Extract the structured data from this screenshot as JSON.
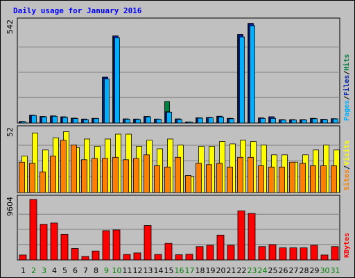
{
  "chart_data": {
    "type": "bar",
    "title": "Daily usage for January 2016",
    "days": [
      "1",
      "2",
      "3",
      "4",
      "5",
      "6",
      "7",
      "8",
      "9",
      "10",
      "11",
      "12",
      "13",
      "14",
      "15",
      "16",
      "17",
      "18",
      "19",
      "20",
      "21",
      "22",
      "23",
      "24",
      "25",
      "26",
      "27",
      "28",
      "29",
      "30",
      "31"
    ],
    "weekend_days": [
      2,
      3,
      9,
      10,
      16,
      17,
      23,
      24,
      30,
      31
    ],
    "panels": [
      {
        "key": "pages_files_hits",
        "max_label": "542",
        "scale_max": 542,
        "side_labels": [
          "Pages",
          "/",
          "Files",
          "/",
          "Hits"
        ],
        "series": [
          {
            "name": "Hits",
            "color": "#008040",
            "values": [
              8,
              42,
              35,
              38,
              33,
              26,
              21,
              25,
              245,
              465,
              22,
              21,
              35,
              21,
              115,
              22,
              6,
              28,
              30,
              36,
              25,
              473,
              532,
              27,
              33,
              18,
              18,
              18,
              25,
              20,
              23
            ]
          },
          {
            "name": "Files",
            "color": "#0022aa",
            "values": [
              8,
              42,
              35,
              38,
              33,
              26,
              21,
              25,
              245,
              465,
              22,
              21,
              35,
              21,
              60,
              22,
              6,
              28,
              30,
              36,
              25,
              473,
              532,
              27,
              33,
              18,
              18,
              18,
              25,
              20,
              23
            ]
          },
          {
            "name": "Pages",
            "color": "#00b0ff",
            "values": [
              7,
              40,
              33,
              36,
              30,
              24,
              18,
              24,
              235,
              455,
              20,
              19,
              33,
              20,
              58,
              19,
              5,
              26,
              28,
              32,
              23,
              460,
              520,
              25,
              25,
              16,
              16,
              16,
              23,
              18,
              22
            ]
          }
        ]
      },
      {
        "key": "visits_sites",
        "max_label": "52",
        "scale_max": 52,
        "side_labels": [
          "Sites",
          "/",
          "Visits"
        ],
        "series": [
          {
            "name": "Visits",
            "color": "#ffff00",
            "values": [
              30,
              49,
              35,
              45,
              50,
              37,
              44,
              38,
              44,
              48,
              48,
              38,
              43,
              36,
              44,
              39,
              13,
              38,
              38,
              42,
              40,
              43,
              42,
              39,
              31,
              31,
              25,
              31,
              35,
              39,
              35
            ]
          },
          {
            "name": "Sites",
            "color": "#ff8000",
            "values": [
              25,
              24,
              17,
              30,
              43,
              39,
              27,
              28,
              28,
              29,
              27,
              28,
              31,
              22,
              21,
              29,
              14,
              24,
              23,
              24,
              21,
              29,
              29,
              22,
              21,
              21,
              25,
              24,
              22,
              22,
              22
            ]
          }
        ]
      },
      {
        "key": "kbytes",
        "max_label": "9604",
        "scale_max": 9604,
        "side_labels": [
          "KBytes"
        ],
        "series": [
          {
            "name": "KBytes",
            "color": "#ff0000",
            "values": [
              770,
              9500,
              5600,
              5800,
              4000,
              1800,
              550,
              1400,
              4600,
              4700,
              860,
              1100,
              5400,
              860,
              2600,
              820,
              900,
              2100,
              2300,
              3900,
              2300,
              7700,
              7300,
              2100,
              2400,
              1900,
              1900,
              1900,
              2300,
              780,
              2100
            ]
          }
        ]
      }
    ]
  },
  "colors": {
    "background": "#ffffff",
    "frame": "#c0c0c0",
    "plot": "#c0c0c0",
    "title": "#0000ff",
    "weekday_label": "#000000",
    "weekend_label": "#008000"
  }
}
